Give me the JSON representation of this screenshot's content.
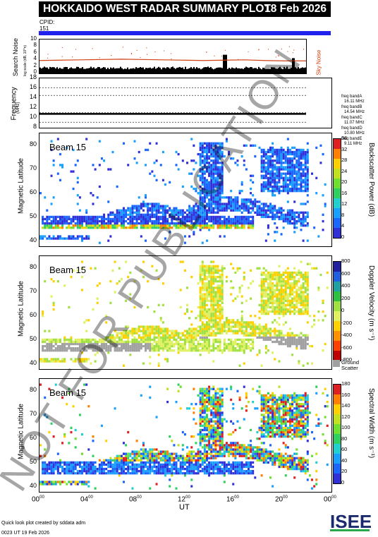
{
  "header": {
    "title": "HOKKAIDO WEST RADAR SUMMARY PLOT",
    "date": "18 Feb 2026",
    "cpid_label": "CPID:",
    "cpid_value": "151"
  },
  "noise_panel": {
    "ylabel": "Search Noise",
    "ylabel_sub": "log scale (dB, 10^n)",
    "right_label": "Sky Noise",
    "yticks": [
      "0",
      "2",
      "4",
      "6",
      "8",
      "10"
    ]
  },
  "freq_panel": {
    "ylabel": "Frequency",
    "ylabel_unit": "(MHz)",
    "yticks": [
      "8",
      "10",
      "12",
      "14",
      "16",
      "18"
    ],
    "bands": [
      {
        "name": "freq bandA",
        "value": "16.11 MHz"
      },
      {
        "name": "freq bandB",
        "value": "14.54 MHz"
      },
      {
        "name": "freq bandC",
        "value": "11.07 MHz"
      },
      {
        "name": "freq bandD",
        "value": "10.80 MHz"
      },
      {
        "name": "freq bandE",
        "value": "9.11 MHz"
      }
    ]
  },
  "panels": [
    {
      "beam": "Beam 15",
      "ylabel": "Magnetic Latitude",
      "cb_title": "Backscatter Power (dB)",
      "cb_ticks": [
        "0",
        "4",
        "8",
        "12",
        "16",
        "20",
        "24",
        "28",
        "32",
        "36"
      ]
    },
    {
      "beam": "Beam 15",
      "ylabel": "Magnetic Latitude",
      "cb_title": "Doppler Velocity (m s⁻¹)",
      "cb_ticks": [
        "-800",
        "-600",
        "-400",
        "-200",
        "0",
        "200",
        "400",
        "600",
        "800"
      ],
      "ground_label_1": "Ground",
      "ground_label_2": "Scatter"
    },
    {
      "beam": "Beam 15",
      "ylabel": "Magnetic Latitude",
      "cb_title": "Spectral Width (m s⁻¹)",
      "cb_ticks": [
        "0",
        "20",
        "40",
        "60",
        "80",
        "100",
        "120",
        "140",
        "160",
        "180"
      ]
    }
  ],
  "lat_ticks": [
    "40",
    "50",
    "60",
    "70",
    "80"
  ],
  "x_axis": {
    "label": "UT",
    "ticks": [
      {
        "h": "00",
        "m": "00"
      },
      {
        "h": "04",
        "m": "00"
      },
      {
        "h": "08",
        "m": "00"
      },
      {
        "h": "12",
        "m": "00"
      },
      {
        "h": "16",
        "m": "00"
      },
      {
        "h": "20",
        "m": "00"
      },
      {
        "h": "00",
        "m": "00"
      }
    ]
  },
  "footer": {
    "line1": "Quick look plot created by sddata adm",
    "line2": "0023 UT 19 Feb 2026",
    "logo": "ISEE"
  },
  "watermark": "NOT FOR PUBLICATION",
  "chart_data": [
    {
      "type": "line",
      "title": "Search Noise",
      "ylim": [
        0,
        10
      ],
      "series": [
        {
          "name": "Sky Noise",
          "values": [
            3.8,
            3.9,
            4.0,
            4.1,
            4.2,
            4.1,
            4.0,
            3.9,
            3.8,
            3.9,
            4.0,
            3.8,
            3.7,
            3.7
          ]
        }
      ]
    },
    {
      "type": "line",
      "title": "Frequency",
      "ylim": [
        8,
        18
      ],
      "series": [
        {
          "name": "freq bandD",
          "values": [
            10.8,
            10.8,
            10.8,
            10.8,
            10.8,
            10.8,
            10.8
          ]
        }
      ]
    },
    {
      "type": "heatmap",
      "title": "Backscatter Power (dB)",
      "ylim": [
        38,
        85
      ],
      "zlim": [
        0,
        36
      ],
      "xlim": [
        0,
        24
      ]
    },
    {
      "type": "heatmap",
      "title": "Doppler Velocity",
      "ylim": [
        38,
        85
      ],
      "zlim": [
        -800,
        800
      ],
      "xlim": [
        0,
        24
      ]
    },
    {
      "type": "heatmap",
      "title": "Spectral Width",
      "ylim": [
        38,
        85
      ],
      "zlim": [
        0,
        180
      ],
      "xlim": [
        0,
        24
      ]
    }
  ]
}
